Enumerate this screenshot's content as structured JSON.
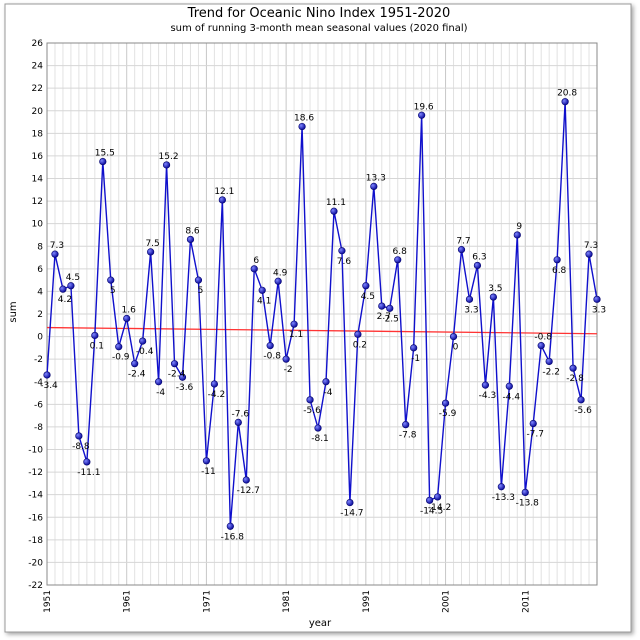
{
  "chart_data": {
    "type": "line",
    "title": "Trend for Oceanic Nino Index 1951-2020",
    "subtitle": "sum of running 3-month mean seasonal values (2020 final)",
    "xlabel": "year",
    "ylabel": "sum",
    "xlim": [
      1951,
      2020
    ],
    "ylim": [
      -22,
      26
    ],
    "y_ticks": [
      26,
      24,
      22,
      20,
      18,
      16,
      14,
      12,
      10,
      8,
      6,
      4,
      2,
      0,
      -2,
      -4,
      -6,
      -8,
      -10,
      -12,
      -14,
      -16,
      -18,
      -20,
      -22
    ],
    "x_ticks": [
      "1951",
      "1961",
      "1971",
      "1981",
      "1991",
      "2001",
      "2011"
    ],
    "grid": true,
    "series": [
      {
        "color": "#1010cc",
        "x": [
          1951,
          1952,
          1953,
          1954,
          1955,
          1956,
          1957,
          1958,
          1959,
          1960,
          1961,
          1962,
          1963,
          1964,
          1965,
          1966,
          1967,
          1968,
          1969,
          1970,
          1971,
          1972,
          1973,
          1974,
          1975,
          1976,
          1977,
          1978,
          1979,
          1980,
          1981,
          1982,
          1983,
          1984,
          1985,
          1986,
          1987,
          1988,
          1989,
          1990,
          1991,
          1992,
          1993,
          1994,
          1995,
          1996,
          1997,
          1998,
          1999,
          2000,
          2001,
          2002,
          2003,
          2004,
          2005,
          2006,
          2007,
          2008,
          2009,
          2010,
          2011,
          2012,
          2013,
          2014,
          2015,
          2016,
          2017,
          2018,
          2019,
          2020
        ],
        "values": [
          -3.4,
          7.3,
          4.2,
          4.5,
          -8.8,
          -11.1,
          0.1,
          15.5,
          5,
          -0.9,
          1.6,
          -2.4,
          -0.4,
          7.5,
          -4,
          15.2,
          -2.4,
          -3.6,
          8.6,
          5,
          -11,
          -4.2,
          12.1,
          -16.8,
          -7.6,
          -12.7,
          6,
          4.1,
          -0.8,
          4.9,
          -2,
          1.1,
          18.6,
          -5.6,
          -8.1,
          -4,
          11.1,
          7.6,
          -14.7,
          0.2,
          4.5,
          13.3,
          2.7,
          2.5,
          6.8,
          -7.8,
          -1,
          19.6,
          -14.5,
          -14.2,
          -5.9,
          0,
          7.7,
          3.3,
          6.3,
          -4.3,
          3.5,
          -13.3,
          -4.4,
          9,
          -13.8,
          -7.7,
          -0.8,
          -2.2,
          6.8,
          20.8,
          -2.8,
          -5.6,
          7.3,
          3.3
        ],
        "labels": [
          "-3.4",
          "7.3",
          "4.2",
          "4.5",
          "-8.8",
          "-11.1",
          "0.1",
          "15.5",
          "5",
          "-0.9",
          "1.6",
          "-2.4",
          "-0.4",
          "7.5",
          "-4",
          "15.2",
          "-2.4",
          "-3.6",
          "8.6",
          "5",
          "-11",
          "-4.2",
          "12.1",
          "-16.8",
          "-7.6",
          "-12.7",
          "6",
          "4.1",
          "-0.8",
          "4.9",
          "-2",
          "1.1",
          "18.6",
          "-5.6",
          "-8.1",
          "-4",
          "11.1",
          "7.6",
          "-14.7",
          "0.2",
          "4.5",
          "13.3",
          "2.7",
          "2.5",
          "6.8",
          "-7.8",
          "-1",
          "19.6",
          "-14.5",
          "-14.2",
          "-5.9",
          "0",
          "7.7",
          "3.3",
          "6.3",
          "-4.3",
          "3.5",
          "-13.3",
          "-4.4",
          "9",
          "-13.8",
          "-7.7",
          "-0.8",
          "-2.2",
          "6.8",
          "20.8",
          "-2.8",
          "-5.6",
          "7.3",
          "3.3"
        ]
      },
      {
        "type": "trendline",
        "color": "#ff3333",
        "x": [
          1951,
          2020
        ],
        "values": [
          0.8,
          0.25
        ]
      }
    ]
  }
}
